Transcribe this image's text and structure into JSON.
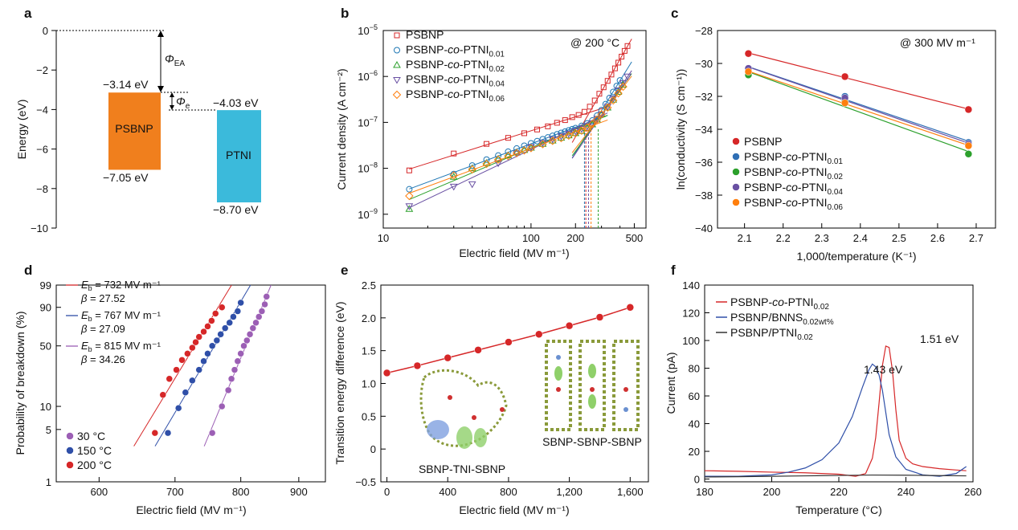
{
  "panels": {
    "a": {
      "letter": "a",
      "ylabel": "Energy (eV)",
      "ylim": [
        -10,
        0
      ],
      "yticks": [
        "0",
        "−2",
        "−4",
        "−6",
        "−8",
        "−10"
      ],
      "boxes": [
        {
          "name": "PSBNP",
          "top": -3.14,
          "bottom": -7.05,
          "top_label": "−3.14 eV",
          "bottom_label": "−7.05 eV",
          "color": "#f07f1d"
        },
        {
          "name": "PTNI",
          "top": -4.03,
          "bottom": -8.7,
          "top_label": "−4.03 eV",
          "bottom_label": "−8.70 eV",
          "color": "#3bbadb"
        }
      ],
      "phi_ea": {
        "sym": "Φ",
        "sub": "EA"
      },
      "phi_e": {
        "sym": "Φ",
        "sub": "e"
      }
    },
    "b": {
      "letter": "b",
      "annotation": "@ 200 °C",
      "xlabel": "Electric field (MV m⁻¹)",
      "ylabel": "Current density (A cm⁻²)",
      "xticks": [
        "10",
        "100",
        "200",
        "500"
      ],
      "yticks": [
        {
          "base": "10",
          "exp": "−5"
        },
        {
          "base": "10",
          "exp": "−6"
        },
        {
          "base": "10",
          "exp": "−7"
        },
        {
          "base": "10",
          "exp": "−8"
        },
        {
          "base": "10",
          "exp": "−9"
        }
      ],
      "legend": [
        {
          "pre": "PSBNP",
          "mid": "",
          "post": "",
          "sub": ""
        },
        {
          "pre": "PSBNP-",
          "mid": "co",
          "post": "-PTNI",
          "sub": "0.01"
        },
        {
          "pre": "PSBNP-",
          "mid": "co",
          "post": "-PTNI",
          "sub": "0.02"
        },
        {
          "pre": "PSBNP-",
          "mid": "co",
          "post": "-PTNI",
          "sub": "0.04"
        },
        {
          "pre": "PSBNP-",
          "mid": "co",
          "post": "-PTNI",
          "sub": "0.06"
        }
      ]
    },
    "c": {
      "letter": "c",
      "annotation": "@ 300 MV m⁻¹",
      "xlabel": "1,000/temperature (K⁻¹)",
      "ylabel": "ln(conductivity (S cm⁻¹))",
      "xticks": [
        "2.1",
        "2.2",
        "2.3",
        "2.4",
        "2.5",
        "2.6",
        "2.7"
      ],
      "yticks": [
        "−28",
        "−30",
        "−32",
        "−34",
        "−36",
        "−38",
        "−40"
      ],
      "legend": [
        {
          "pre": "PSBNP",
          "mid": "",
          "post": "",
          "sub": ""
        },
        {
          "pre": "PSBNP-",
          "mid": "co",
          "post": "-PTNI",
          "sub": "0.01"
        },
        {
          "pre": "PSBNP-",
          "mid": "co",
          "post": "-PTNI",
          "sub": "0.02"
        },
        {
          "pre": "PSBNP-",
          "mid": "co",
          "post": "-PTNI",
          "sub": "0.04"
        },
        {
          "pre": "PSBNP-",
          "mid": "co",
          "post": "-PTNI",
          "sub": "0.06"
        }
      ]
    },
    "d": {
      "letter": "d",
      "xlabel": "Electric field (MV m⁻¹)",
      "ylabel": "Probability of breakdown (%)",
      "xticks": [
        "600",
        "700",
        "800",
        "900"
      ],
      "yticks": [
        "99",
        "90",
        "50",
        "10",
        "5",
        "1"
      ],
      "fits": [
        {
          "eb": "= 732 MV m⁻¹",
          "beta": "= 27.52"
        },
        {
          "eb": "= 767 MV m⁻¹",
          "beta": "= 27.09"
        },
        {
          "eb": "= 815 MV m⁻¹",
          "beta": "= 34.26"
        }
      ],
      "legend": [
        "30 °C",
        "150 °C",
        "200 °C"
      ]
    },
    "e": {
      "letter": "e",
      "xlabel": "Electric field (MV m⁻¹)",
      "ylabel": "Transition energy difference (eV)",
      "xticks": [
        "0",
        "400",
        "800",
        "1,200",
        "1,600"
      ],
      "yticks": [
        "2.5",
        "2.0",
        "1.5",
        "1.0",
        "0.5",
        "0",
        "−0.5"
      ],
      "inset_labels": [
        "SBNP-TNI-SBNP",
        "SBNP-SBNP-SBNP"
      ]
    },
    "f": {
      "letter": "f",
      "xlabel": "Temperature (°C)",
      "ylabel": "Current (pA)",
      "xticks": [
        "180",
        "200",
        "220",
        "240",
        "260"
      ],
      "yticks": [
        "140",
        "120",
        "100",
        "80",
        "60",
        "40",
        "20",
        "0"
      ],
      "legend": [
        {
          "pre": "PSBNP-",
          "mid": "co",
          "post": "-PTNI",
          "sub": "0.02"
        },
        {
          "pre": "PSBNP/BNNS",
          "mid": "",
          "post": "",
          "sub": "0.02wt%"
        },
        {
          "pre": "PSBNP/PTNI",
          "mid": "",
          "post": "",
          "sub": "0.02"
        }
      ],
      "peak_labels": [
        "1.43 eV",
        "1.51 eV"
      ]
    }
  },
  "chart_data": [
    {
      "panel": "b",
      "type": "scatter",
      "xscale": "log",
      "yscale": "log",
      "xlim": [
        10,
        600
      ],
      "ylim": [
        5e-10,
        1e-05
      ],
      "series": [
        {
          "name": "PSBNP",
          "color": "#d62728",
          "marker": "square",
          "x": [
            15,
            30,
            50,
            70,
            90,
            110,
            130,
            150,
            170,
            190,
            210,
            230,
            250,
            270,
            290,
            310,
            330,
            350,
            370,
            390,
            410,
            430,
            450
          ],
          "y": [
            9e-09,
            2.1e-08,
            3.4e-08,
            4.6e-08,
            5.8e-08,
            7e-08,
            8.2e-08,
            9.8e-08,
            1.12e-07,
            1.3e-07,
            1.45e-07,
            1.7e-07,
            2.2e-07,
            3e-07,
            4.2e-07,
            5.8e-07,
            8e-07,
            1.1e-06,
            1.5e-06,
            2e-06,
            2.7e-06,
            3.6e-06,
            4.6e-06
          ]
        },
        {
          "name": "PSBNP-co-PTNI0.01",
          "color": "#1f77b4",
          "marker": "circle",
          "x": [
            15,
            30,
            40,
            50,
            60,
            70,
            80,
            90,
            100,
            110,
            120,
            130,
            140,
            150,
            160,
            170,
            180,
            190,
            200,
            220,
            240,
            260,
            280,
            300,
            320,
            340,
            360,
            380,
            400
          ],
          "y": [
            3.5e-09,
            7.5e-09,
            1.15e-08,
            1.55e-08,
            1.9e-08,
            2.3e-08,
            2.7e-08,
            3.1e-08,
            3.5e-08,
            3.9e-08,
            4.3e-08,
            4.7e-08,
            5.1e-08,
            5.5e-08,
            5.9e-08,
            6.3e-08,
            6.7e-08,
            7.1e-08,
            7.5e-08,
            8.4e-08,
            9.5e-08,
            1.1e-07,
            1.4e-07,
            1.85e-07,
            2.5e-07,
            3.4e-07,
            4.6e-07,
            6.2e-07,
            8.2e-07
          ]
        },
        {
          "name": "PSBNP-co-PTNI0.02",
          "color": "#2ca02c",
          "marker": "triangle-up",
          "x": [
            15,
            30,
            40,
            50,
            60,
            70,
            80,
            90,
            100,
            120,
            140,
            160,
            180,
            200,
            220,
            240,
            260,
            280,
            300,
            330,
            360,
            390,
            420
          ],
          "y": [
            1.3e-09,
            6.5e-09,
            1e-08,
            1.3e-08,
            1.6e-08,
            1.9e-08,
            2.2e-08,
            2.5e-08,
            2.8e-08,
            3.4e-08,
            4e-08,
            4.6e-08,
            5.2e-08,
            5.8e-08,
            6.5e-08,
            7.5e-08,
            9e-08,
            1.15e-07,
            1.5e-07,
            2.1e-07,
            3.1e-07,
            4.6e-07,
            6.6e-07
          ]
        },
        {
          "name": "PSBNP-co-PTNI0.04",
          "color": "#6a51a3",
          "marker": "triangle-down",
          "x": [
            15,
            30,
            40,
            60,
            80,
            100,
            120,
            140,
            160,
            180,
            200,
            220,
            240,
            260,
            280,
            300,
            330,
            360,
            390,
            420,
            450
          ],
          "y": [
            1.5e-09,
            4e-09,
            4.5e-09,
            1.3e-08,
            2.1e-08,
            2.9e-08,
            3.6e-08,
            4.3e-08,
            5e-08,
            5.7e-08,
            6.4e-08,
            7.2e-08,
            8.2e-08,
            9.6e-08,
            1.2e-07,
            1.5e-07,
            2.2e-07,
            3.3e-07,
            5e-07,
            7.2e-07,
            1e-06
          ]
        },
        {
          "name": "PSBNP-co-PTNI0.06",
          "color": "#ff7f0e",
          "marker": "diamond",
          "x": [
            15,
            30,
            40,
            50,
            60,
            70,
            80,
            90,
            100,
            120,
            140,
            160,
            180,
            200,
            220,
            240,
            260,
            280,
            300,
            330,
            360,
            390,
            420
          ],
          "y": [
            2.5e-09,
            7e-09,
            9.5e-09,
            1.25e-08,
            1.55e-08,
            1.85e-08,
            2.15e-08,
            2.45e-08,
            2.75e-08,
            3.35e-08,
            3.95e-08,
            4.55e-08,
            5.15e-08,
            5.8e-08,
            6.6e-08,
            7.7e-08,
            9.2e-08,
            1.15e-07,
            1.5e-07,
            2.1e-07,
            3e-07,
            4.3e-07,
            6e-07
          ]
        }
      ]
    },
    {
      "panel": "c",
      "type": "scatter",
      "xlim": [
        2.03,
        2.75
      ],
      "ylim": [
        -40,
        -28
      ],
      "series": [
        {
          "name": "PSBNP",
          "color": "#d62728",
          "x": [
            2.11,
            2.36,
            2.68
          ],
          "y": [
            -29.4,
            -30.8,
            -32.8
          ]
        },
        {
          "name": "PSBNP-co-PTNI0.01",
          "color": "#2f6fb5",
          "x": [
            2.11,
            2.36,
            2.68
          ],
          "y": [
            -30.3,
            -32.0,
            -34.8
          ]
        },
        {
          "name": "PSBNP-co-PTNI0.02",
          "color": "#2ca02c",
          "x": [
            2.11,
            2.36,
            2.68
          ],
          "y": [
            -30.7,
            -32.3,
            -35.5
          ]
        },
        {
          "name": "PSBNP-co-PTNI0.04",
          "color": "#6a51a3",
          "x": [
            2.11,
            2.36,
            2.68
          ],
          "y": [
            -30.3,
            -32.1,
            -34.9
          ]
        },
        {
          "name": "PSBNP-co-PTNI0.06",
          "color": "#ff7f0e",
          "x": [
            2.11,
            2.36,
            2.68
          ],
          "y": [
            -30.5,
            -32.4,
            -35.0
          ]
        }
      ]
    },
    {
      "panel": "d",
      "type": "scatter",
      "xscale": "log",
      "yscale": "weibull",
      "xlim": [
        550,
        950
      ],
      "ylim": [
        1,
        99
      ],
      "series": [
        {
          "name": "30 °C",
          "color": "#9c5fb5",
          "x": [
            755,
            770,
            780,
            785,
            790,
            795,
            800,
            805,
            810,
            815,
            820,
            825,
            830,
            835,
            840,
            843
          ],
          "y": [
            4.5,
            10,
            16,
            22,
            28,
            35,
            42,
            50,
            56,
            63,
            70,
            76,
            82,
            87,
            92,
            96
          ]
        },
        {
          "name": "150 °C",
          "color": "#2f4fa8",
          "x": [
            690,
            705,
            715,
            725,
            735,
            742,
            748,
            755,
            762,
            768,
            775,
            782,
            788,
            795,
            800
          ],
          "y": [
            4.5,
            9.5,
            15,
            21,
            28,
            35,
            42,
            50,
            56,
            63,
            70,
            76,
            82,
            87,
            93
          ]
        },
        {
          "name": "200 °C",
          "color": "#d62728",
          "x": [
            672,
            683,
            692,
            702,
            710,
            718,
            725,
            730,
            735,
            742,
            748,
            754,
            760,
            770
          ],
          "y": [
            4.5,
            14,
            22,
            28,
            36,
            42,
            48,
            54,
            60,
            66,
            72,
            78,
            85,
            90
          ]
        }
      ]
    },
    {
      "panel": "e",
      "type": "line",
      "xlim": [
        -40,
        1720
      ],
      "ylim": [
        -0.5,
        2.5
      ],
      "series": [
        {
          "name": "",
          "color": "#d62728",
          "x": [
            0,
            200,
            400,
            600,
            800,
            1000,
            1200,
            1400,
            1600
          ],
          "y": [
            1.16,
            1.27,
            1.39,
            1.51,
            1.63,
            1.75,
            1.88,
            2.01,
            2.16
          ]
        }
      ]
    },
    {
      "panel": "f",
      "type": "line",
      "xlim": [
        180,
        260
      ],
      "ylim": [
        -2,
        140
      ],
      "series": [
        {
          "name": "PSBNP-co-PTNI0.02",
          "color": "#d62728",
          "x": [
            180,
            190,
            200,
            210,
            220,
            225,
            228,
            230,
            231,
            232,
            233,
            234,
            235,
            236,
            237,
            238,
            240,
            242,
            245,
            250,
            255,
            258
          ],
          "y": [
            6,
            5.6,
            5,
            4.5,
            3.5,
            2,
            4,
            15,
            30,
            55,
            82,
            96,
            95,
            78,
            50,
            28,
            15,
            11,
            9,
            7.5,
            6.5,
            6
          ]
        },
        {
          "name": "PSBNP/BNNS0.02wt%",
          "color": "#2f4fa8",
          "x": [
            180,
            190,
            200,
            205,
            210,
            215,
            220,
            224,
            227,
            229,
            230,
            231,
            232,
            233,
            234,
            235,
            237,
            240,
            245,
            250,
            255,
            258
          ],
          "y": [
            2,
            2,
            3,
            5,
            8,
            14,
            26,
            45,
            66,
            79,
            83,
            81,
            75,
            64,
            48,
            32,
            16,
            7,
            3,
            2,
            4,
            9
          ]
        },
        {
          "name": "PSBNP/PTNI0.02",
          "color": "#333333",
          "x": [
            180,
            190,
            200,
            210,
            220,
            230,
            240,
            250,
            258
          ],
          "y": [
            1.5,
            1.7,
            2,
            2.3,
            2.6,
            2.9,
            2.8,
            2.5,
            2.3
          ]
        }
      ]
    }
  ]
}
